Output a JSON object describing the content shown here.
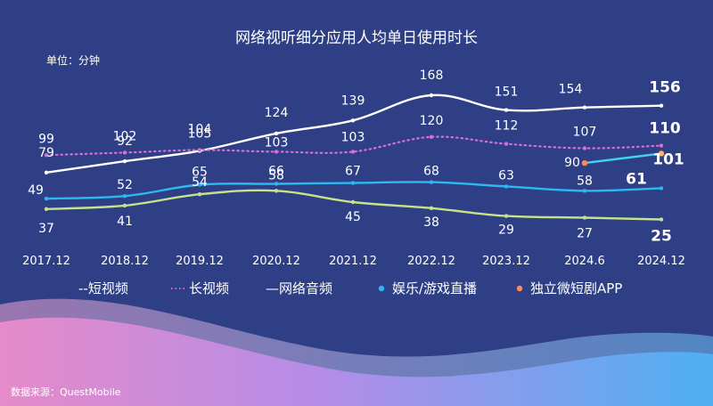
{
  "chart_data": {
    "type": "line",
    "title": "网络视听细分应用人均单日使用时长",
    "unit_label": "单位：分钟",
    "categories": [
      "2017.12",
      "2018.12",
      "2019.12",
      "2020.12",
      "2021.12",
      "2022.12",
      "2023.12",
      "2024.6",
      "2024.12"
    ],
    "series": [
      {
        "name": "短视频",
        "color": "#ffffff",
        "style": "solid",
        "values": [
          79,
          92,
          104,
          124,
          139,
          168,
          151,
          154,
          156
        ]
      },
      {
        "name": "长视频",
        "color": "#d56fd6",
        "style": "dotted",
        "values": [
          99,
          102,
          105,
          103,
          103,
          120,
          112,
          107,
          110
        ]
      },
      {
        "name": "网络音频",
        "color": "#c9e28a",
        "style": "solid",
        "values": [
          37,
          41,
          54,
          58,
          45,
          38,
          29,
          27,
          25
        ]
      },
      {
        "name": "娱乐/游戏直播",
        "color": "#2fb7f0",
        "style": "solid",
        "values": [
          49,
          52,
          65,
          66,
          67,
          68,
          63,
          58,
          61
        ]
      },
      {
        "name": "独立微短剧APP",
        "color": "#3fd3f0",
        "style": "solid",
        "values": [
          null,
          null,
          null,
          null,
          null,
          null,
          null,
          90,
          101
        ]
      }
    ],
    "legend": [
      "--短视频",
      "长视频",
      "—网络音频",
      "娱乐/游戏直播",
      "独立微短剧APP"
    ],
    "grid": false,
    "legend_position": "bottom"
  },
  "source": "数据来源：QuestMobile",
  "colors": {
    "background": "#2f3f86",
    "text": "#ffffff",
    "wave_pink": "#e07fd0",
    "wave_blue": "#56a8ef"
  }
}
